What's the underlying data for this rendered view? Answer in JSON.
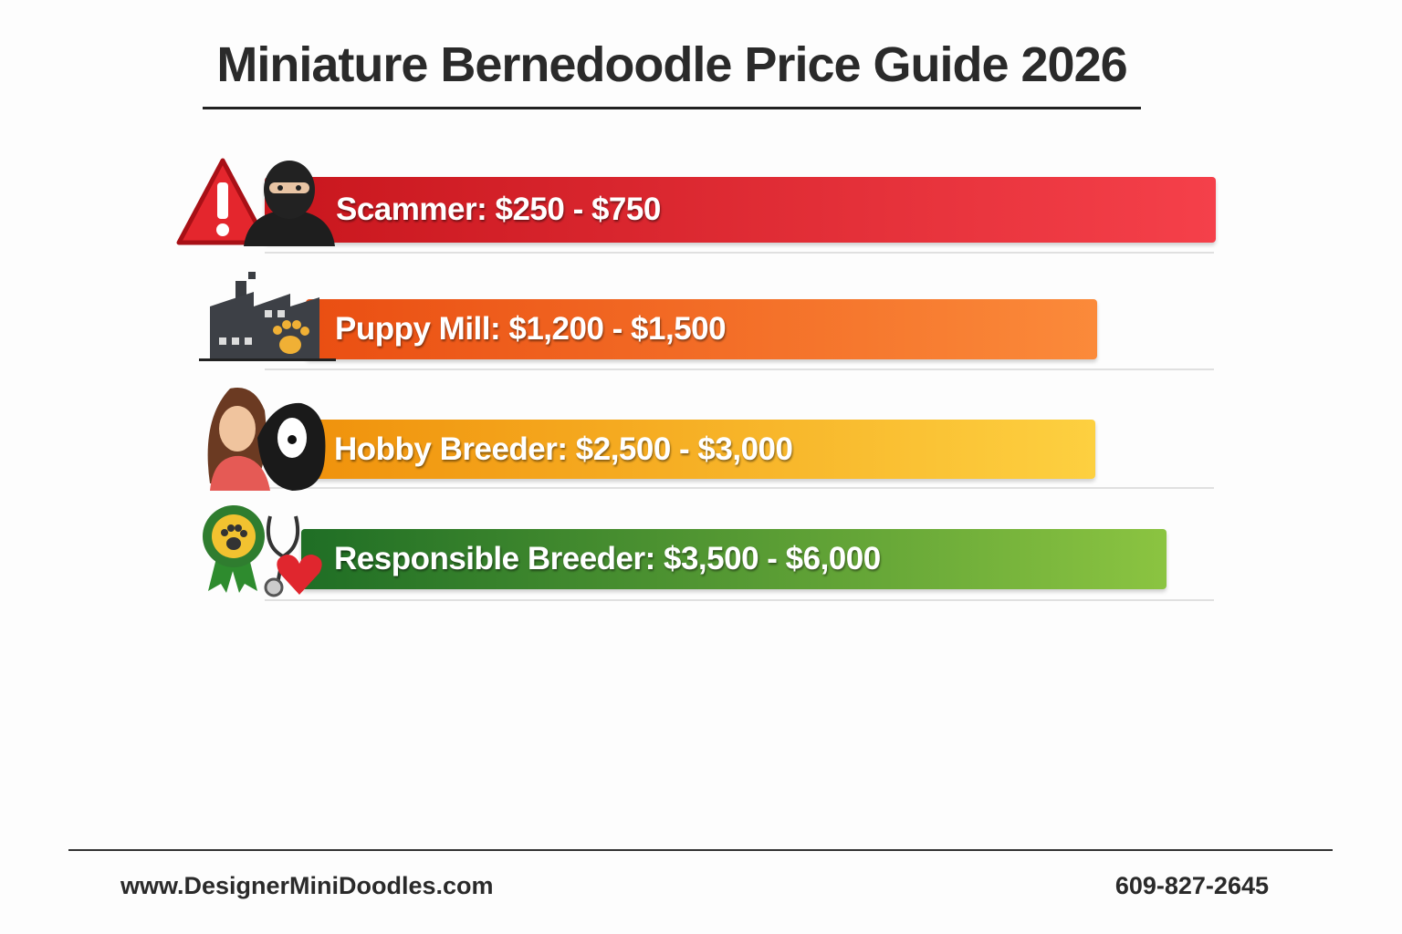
{
  "header": {
    "title": "Miniature Bernedoodle Price Guide 2026"
  },
  "tiers": [
    {
      "label": "Scammer:  $250 - $750"
    },
    {
      "label": "Puppy Mill: $1,200 - $1,500"
    },
    {
      "label": "Hobby Breeder: $2,500 - $3,000"
    },
    {
      "label": "Responsible Breeder: $3,500 - $6,000"
    }
  ],
  "footer": {
    "website": "www.DesignerMiniDoodles.com",
    "phone": "609-827-2645"
  }
}
